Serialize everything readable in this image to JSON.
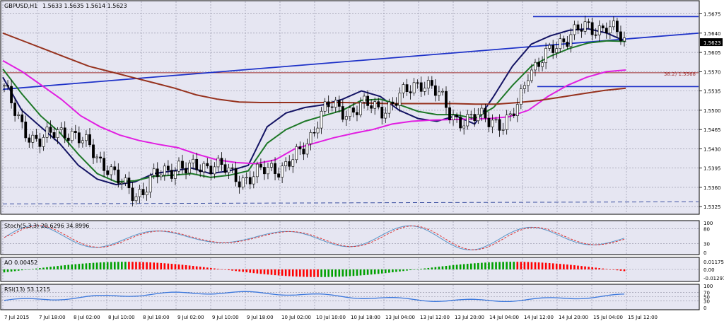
{
  "window": {
    "symbol_title": "GBPUSD,H1",
    "ohlc": "1.5633 1.5635 1.5614 1.5623"
  },
  "price_scale": {
    "current": "1.5623",
    "ticks": [
      "1.5675",
      "1.5640",
      "1.5605",
      "1.5570",
      "1.5535",
      "1.5500",
      "1.5465",
      "1.5430",
      "1.5395",
      "1.5360",
      "1.5325"
    ]
  },
  "fibo_label": "38.2) 1.5568",
  "stoch": {
    "title": "Stoch(5,3,3) 29.6296 34.8996",
    "ticks": [
      "100",
      "80",
      "30",
      "0"
    ]
  },
  "ao": {
    "title": "AO 0.00452",
    "ticks": [
      "0.01175",
      "0.00",
      "-0.01297"
    ]
  },
  "rsi": {
    "title": "RSI(13) 53.1215",
    "ticks": [
      "100",
      "70",
      "50",
      "30",
      "0"
    ]
  },
  "time_axis": [
    "7 Jul 2015",
    "7 Jul 18:00",
    "8 Jul 02:00",
    "8 Jul 10:00",
    "8 Jul 18:00",
    "9 Jul 02:00",
    "9 Jul 10:00",
    "9 Jul 18:00",
    "10 Jul 02:00",
    "10 Jul 10:00",
    "10 Jul 18:00",
    "13 Jul 04:00",
    "13 Jul 12:00",
    "13 Jul 20:00",
    "14 Jul 04:00",
    "14 Jul 12:00",
    "14 Jul 20:00",
    "15 Jul 04:00",
    "15 Jul 12:00"
  ],
  "colors": {
    "background": "#e6e6f2",
    "grid": "#8c8ca0",
    "candle_bull": "#ffffff",
    "candle_bear": "#000000",
    "ema_fast": "#141464",
    "ema_mid": "#1e7828",
    "ema_slow": "#e11ee1",
    "ema_long": "#96321e",
    "trendline": "#1e32c8",
    "fibo": "#a03232",
    "stoch_main": "#5a96c8",
    "stoch_signal": "#dc3232",
    "ao_up": "#00a000",
    "ao_down": "#ff0000",
    "rsi": "#3c78dc"
  },
  "chart_data": {
    "type": "candlestick",
    "title": "GBPUSD,H1",
    "ylim": [
      1.5315,
      1.5695
    ],
    "key_levels": {
      "fibo_38_2": 1.5568,
      "top_level": 1.567,
      "mid_level": 1.5543,
      "lower_dashed": 1.533
    },
    "close_path": [
      1.5545,
      1.55,
      1.547,
      1.5455,
      1.5445,
      1.545,
      1.546,
      1.5465,
      1.5455,
      1.544,
      1.543,
      1.541,
      1.5395,
      1.537,
      1.536,
      1.535,
      1.5355,
      1.5375,
      1.5385,
      1.5395,
      1.54,
      1.539,
      1.5395,
      1.54,
      1.5405,
      1.5395,
      1.538,
      1.5375,
      1.538,
      1.5385,
      1.539,
      1.5395,
      1.54,
      1.541,
      1.542,
      1.545,
      1.549,
      1.551,
      1.55,
      1.5495,
      1.5505,
      1.551,
      1.5505,
      1.55,
      1.551,
      1.552,
      1.553,
      1.5545,
      1.5555,
      1.554,
      1.552,
      1.5495,
      1.5485,
      1.548,
      1.5485,
      1.549,
      1.5485,
      1.547,
      1.548,
      1.552,
      1.5575,
      1.558,
      1.5595,
      1.5615,
      1.563,
      1.564,
      1.5645,
      1.5648,
      1.565,
      1.5655,
      1.564,
      1.5623
    ],
    "series": [
      {
        "name": "EMA fast",
        "values": [
          1.556,
          1.55,
          1.547,
          1.544,
          1.54,
          1.5375,
          1.5365,
          1.537,
          1.5385,
          1.539,
          1.5395,
          1.5385,
          1.539,
          1.54,
          1.547,
          1.5495,
          1.5505,
          1.551,
          1.552,
          1.5535,
          1.5525,
          1.55,
          1.5485,
          1.548,
          1.549,
          1.5475,
          1.5525,
          1.558,
          1.562,
          1.5635,
          1.5645,
          1.5648,
          1.564,
          1.5625
        ]
      },
      {
        "name": "EMA mid",
        "values": [
          1.5575,
          1.553,
          1.549,
          1.546,
          1.542,
          1.5385,
          1.537,
          1.5372,
          1.538,
          1.5382,
          1.5385,
          1.5378,
          1.5382,
          1.539,
          1.544,
          1.5465,
          1.548,
          1.549,
          1.55,
          1.5518,
          1.552,
          1.551,
          1.5498,
          1.5492,
          1.5492,
          1.5485,
          1.5505,
          1.5545,
          1.558,
          1.5598,
          1.5612,
          1.5622,
          1.5626,
          1.5625
        ]
      },
      {
        "name": "EMA slow",
        "values": [
          1.559,
          1.557,
          1.5545,
          1.552,
          1.549,
          1.547,
          1.5455,
          1.5445,
          1.5438,
          1.5432,
          1.542,
          1.541,
          1.5405,
          1.5403,
          1.541,
          1.543,
          1.544,
          1.545,
          1.5458,
          1.5465,
          1.5475,
          1.548,
          1.5482,
          1.5483,
          1.5484,
          1.5485,
          1.5488,
          1.55,
          1.5525,
          1.5545,
          1.556,
          1.557,
          1.5573
        ]
      },
      {
        "name": "EMA long",
        "values": [
          1.564,
          1.5625,
          1.561,
          1.5595,
          1.558,
          1.557,
          1.556,
          1.555,
          1.554,
          1.5528,
          1.552,
          1.5515,
          1.5514,
          1.5514,
          1.5514,
          1.5514,
          1.5514,
          1.5513,
          1.5512,
          1.5512,
          1.5512,
          1.5512,
          1.5511,
          1.5511,
          1.5514,
          1.5518,
          1.5524,
          1.553,
          1.5536,
          1.554
        ]
      }
    ]
  }
}
